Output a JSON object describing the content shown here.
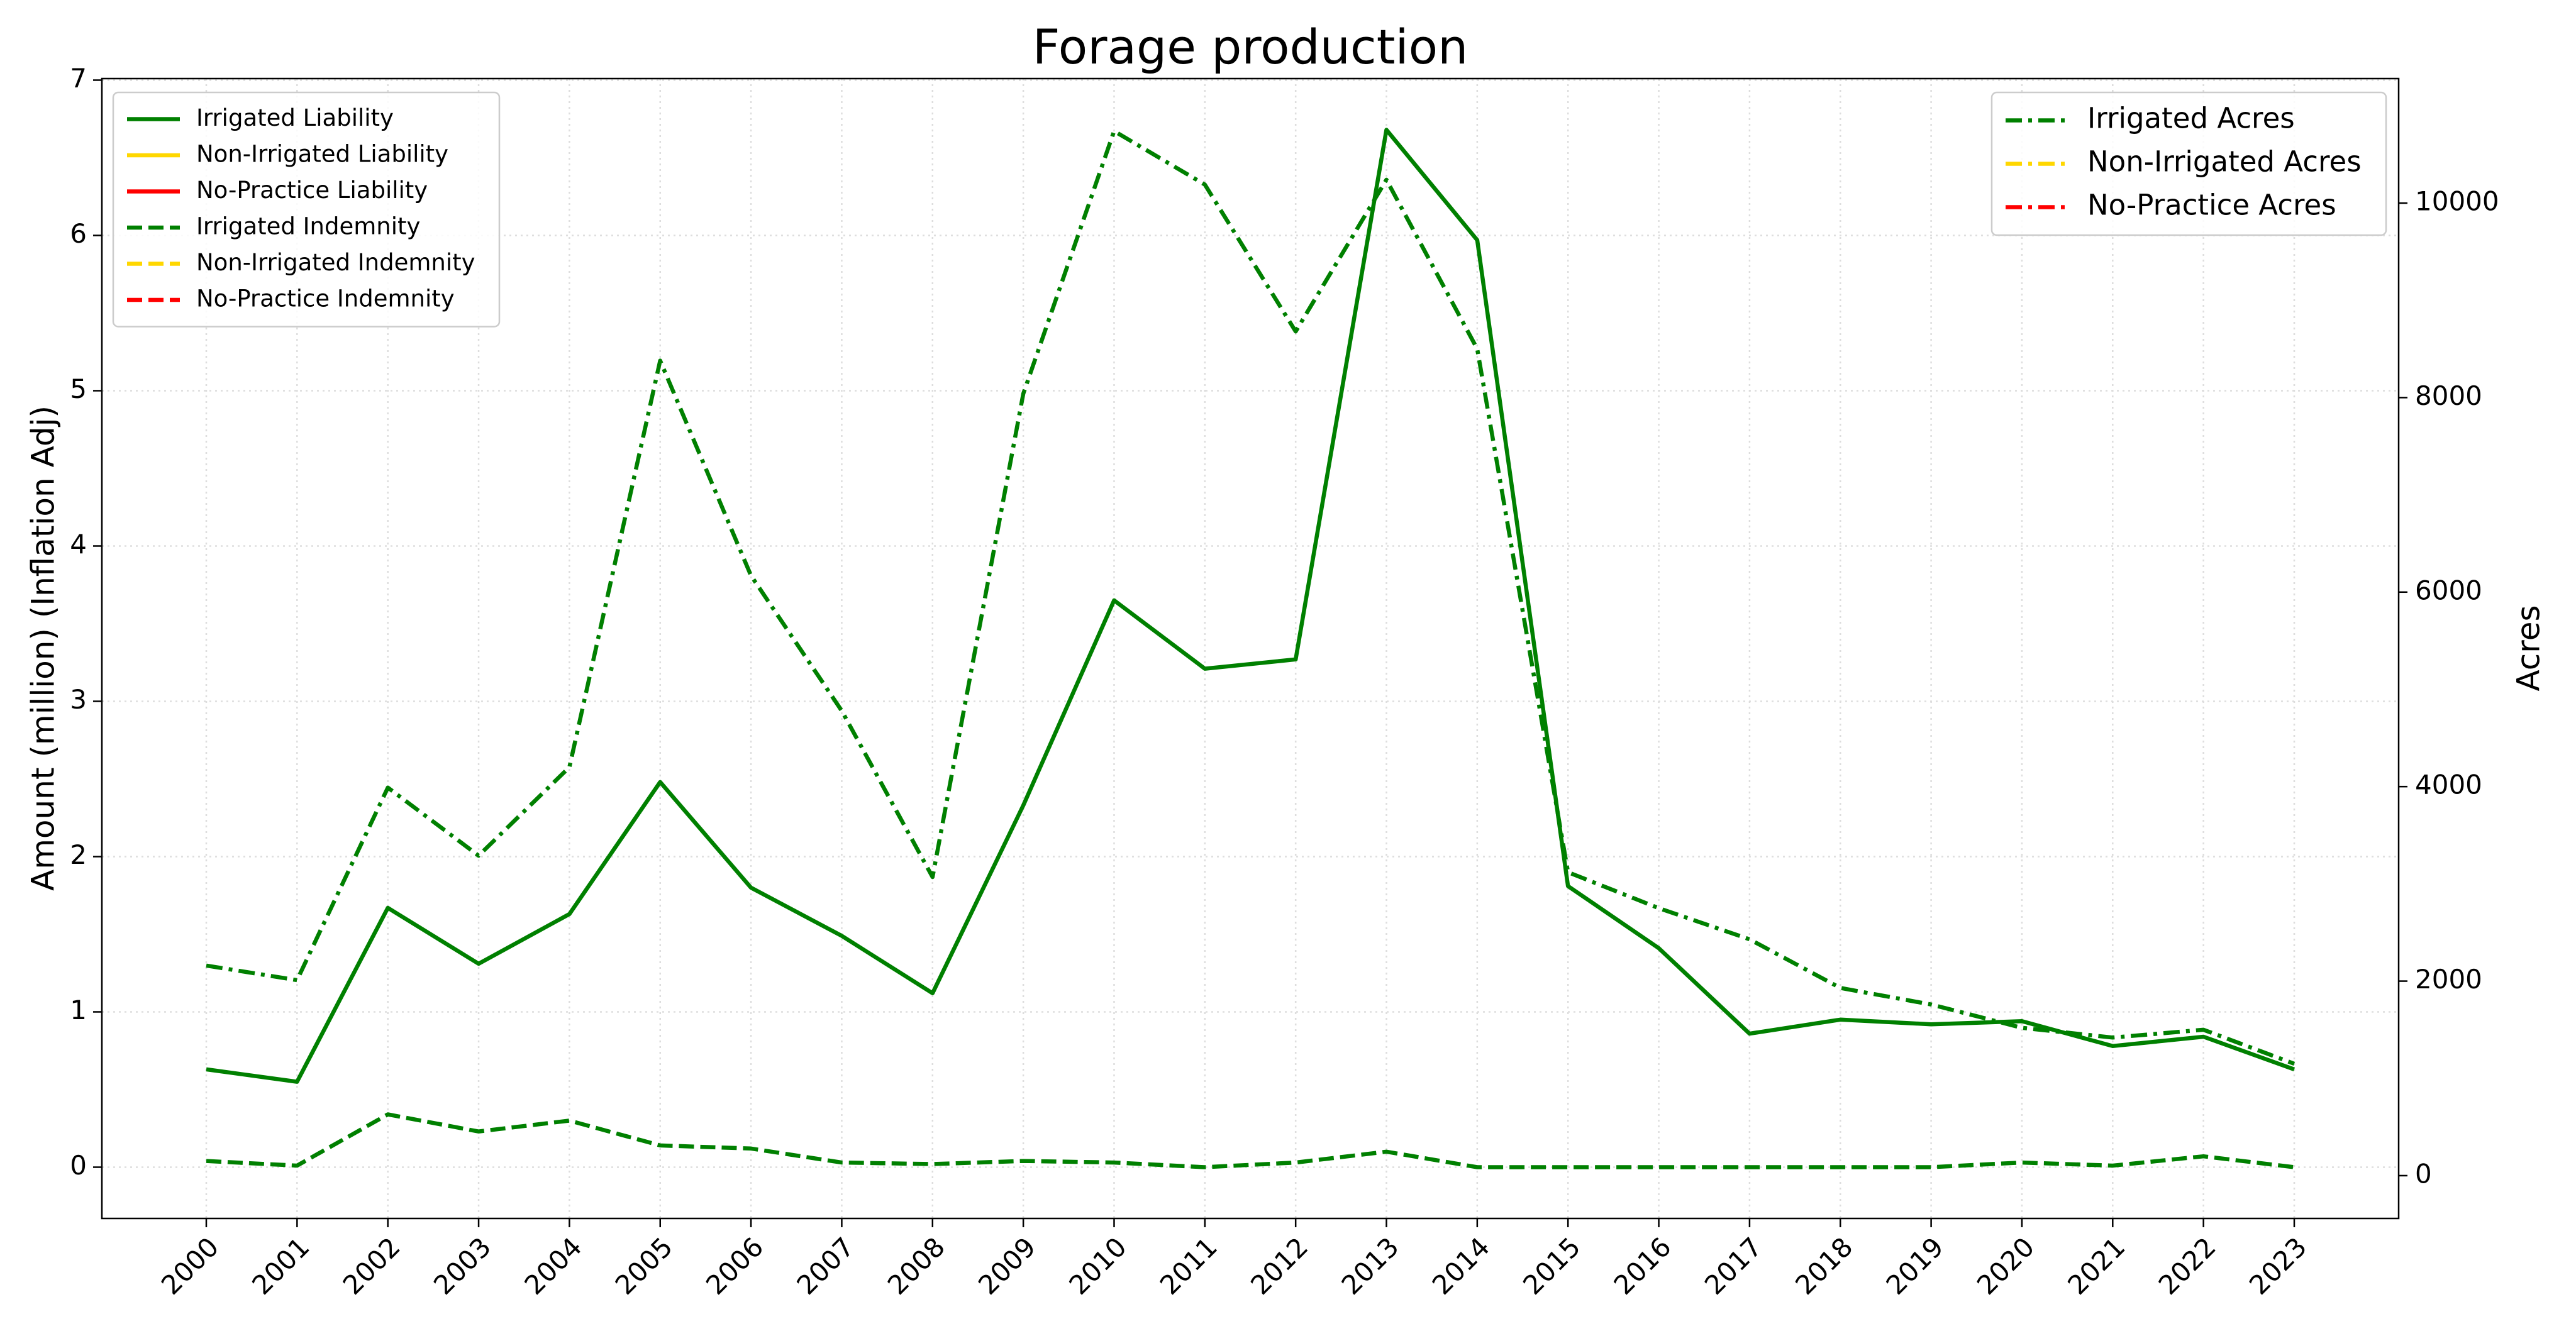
{
  "chart_data": {
    "type": "line",
    "title": "Forage production",
    "ylabel": "Amount (million) (Inflation Adj)",
    "y2label": "Acres",
    "categories": [
      "2000",
      "2001",
      "2002",
      "2003",
      "2004",
      "2005",
      "2006",
      "2007",
      "2008",
      "2009",
      "2010",
      "2011",
      "2012",
      "2013",
      "2014",
      "2015",
      "2016",
      "2017",
      "2018",
      "2019",
      "2020",
      "2021",
      "2022",
      "2023"
    ],
    "series": [
      {
        "name": "Irrigated Liability",
        "color": "#008000",
        "linestyle": "solid",
        "axis": "y",
        "values": [
          0.63,
          0.55,
          1.67,
          1.31,
          1.63,
          2.48,
          1.8,
          1.49,
          1.12,
          2.33,
          3.65,
          3.21,
          3.27,
          6.68,
          5.97,
          1.81,
          1.41,
          0.86,
          0.95,
          0.92,
          0.94,
          0.78,
          0.84,
          0.63
        ]
      },
      {
        "name": "Non-Irrigated Liability",
        "color": "#ffd700",
        "linestyle": "solid",
        "axis": "y",
        "values": [
          null,
          null,
          null,
          null,
          null,
          null,
          null,
          null,
          null,
          null,
          null,
          null,
          null,
          null,
          null,
          null,
          null,
          null,
          null,
          null,
          null,
          null,
          null,
          null
        ]
      },
      {
        "name": "No-Practice Liability",
        "color": "#ff0000",
        "linestyle": "solid",
        "axis": "y",
        "values": [
          null,
          null,
          null,
          null,
          null,
          null,
          null,
          null,
          null,
          null,
          null,
          null,
          null,
          null,
          null,
          null,
          null,
          null,
          null,
          null,
          null,
          null,
          null,
          null
        ]
      },
      {
        "name": "Irrigated Indemnity",
        "color": "#008000",
        "linestyle": "dashed",
        "axis": "y",
        "values": [
          0.04,
          0.01,
          0.34,
          0.23,
          0.3,
          0.14,
          0.12,
          0.03,
          0.02,
          0.04,
          0.03,
          0.0,
          0.03,
          0.1,
          0.0,
          0.0,
          0.0,
          0.0,
          0.0,
          0.0,
          0.03,
          0.01,
          0.07,
          0.0
        ]
      },
      {
        "name": "Non-Irrigated Indemnity",
        "color": "#ffd700",
        "linestyle": "dashed",
        "axis": "y",
        "values": [
          null,
          null,
          null,
          null,
          null,
          null,
          null,
          null,
          null,
          null,
          null,
          null,
          null,
          null,
          null,
          null,
          null,
          null,
          null,
          null,
          null,
          null,
          null,
          null
        ]
      },
      {
        "name": "No-Practice Indemnity",
        "color": "#ff0000",
        "linestyle": "dashed",
        "axis": "y",
        "values": [
          null,
          null,
          null,
          null,
          null,
          null,
          null,
          null,
          null,
          null,
          null,
          null,
          null,
          null,
          null,
          null,
          null,
          null,
          null,
          null,
          null,
          null,
          null,
          null
        ]
      },
      {
        "name": "Irrigated Acres",
        "color": "#008000",
        "linestyle": "dashdot",
        "axis": "y2",
        "values": [
          2160,
          2010,
          3990,
          3290,
          4200,
          8380,
          6170,
          4780,
          3070,
          8040,
          10740,
          10190,
          8680,
          10240,
          8500,
          3120,
          2750,
          2430,
          1930,
          1760,
          1520,
          1420,
          1500,
          1150
        ]
      },
      {
        "name": "Non-Irrigated Acres",
        "color": "#ffd700",
        "linestyle": "dashdot",
        "axis": "y2",
        "values": [
          null,
          null,
          null,
          null,
          null,
          null,
          null,
          null,
          null,
          null,
          null,
          null,
          null,
          null,
          null,
          null,
          null,
          null,
          null,
          null,
          null,
          null,
          null,
          null
        ]
      },
      {
        "name": "No-Practice Acres",
        "color": "#ff0000",
        "linestyle": "dashdot",
        "axis": "y2",
        "values": [
          null,
          null,
          null,
          null,
          null,
          null,
          null,
          null,
          null,
          null,
          null,
          null,
          null,
          null,
          null,
          null,
          null,
          null,
          null,
          null,
          null,
          null,
          null,
          null
        ]
      }
    ],
    "ylim": [
      -0.33,
      7.01
    ],
    "yticks": [
      0,
      1,
      2,
      3,
      4,
      5,
      6,
      7
    ],
    "y2lim": [
      -440,
      11280
    ],
    "y2ticks": [
      0,
      2000,
      4000,
      6000,
      8000,
      10000
    ],
    "grid": true,
    "legend": "upper left",
    "legend2": "upper right"
  }
}
